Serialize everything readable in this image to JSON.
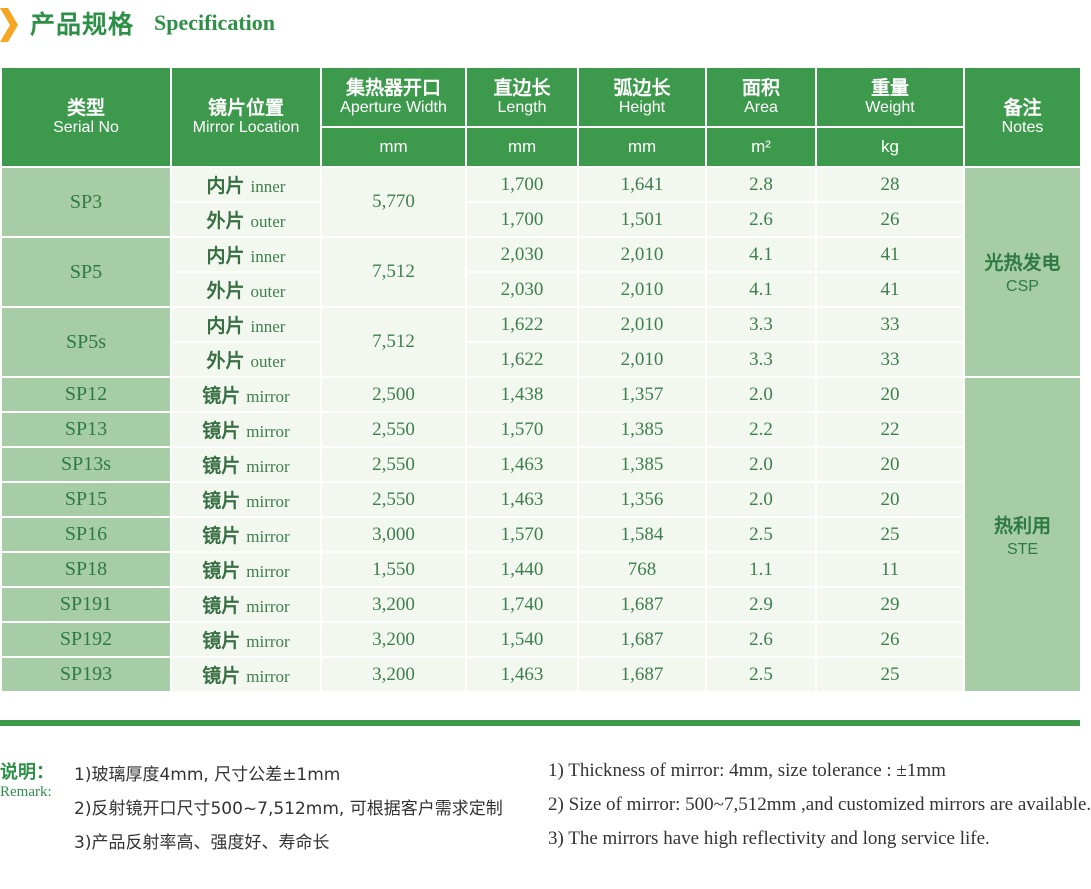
{
  "header": {
    "title_zh": "产品规格",
    "title_en": "Specification",
    "accent_color": "#3d9a4c",
    "arrow_icon": "chevron-right-icon"
  },
  "table": {
    "headers": {
      "serial": {
        "zh": "类型",
        "en": "Serial No"
      },
      "location": {
        "zh": "镜片位置",
        "en": "Mirror Location"
      },
      "aperture": {
        "zh": "集热器开口",
        "en": "Aperture Width",
        "unit": "mm"
      },
      "length": {
        "zh": "直边长",
        "en": "Length",
        "unit": "mm"
      },
      "height": {
        "zh": "弧边长",
        "en": "Height",
        "unit": "mm"
      },
      "area": {
        "zh": "面积",
        "en": "Area",
        "unit": "m²"
      },
      "weight": {
        "zh": "重量",
        "en": "Weight",
        "unit": "kg"
      },
      "notes": {
        "zh": "备注",
        "en": "Notes"
      }
    },
    "groups": [
      {
        "serial": "SP3",
        "aperture": "5,770",
        "rows": [
          {
            "loc_zh": "内片",
            "loc_en": "inner",
            "length": "1,700",
            "height": "1,641",
            "area": "2.8",
            "weight": "28"
          },
          {
            "loc_zh": "外片",
            "loc_en": "outer",
            "length": "1,700",
            "height": "1,501",
            "area": "2.6",
            "weight": "26"
          }
        ]
      },
      {
        "serial": "SP5",
        "aperture": "7,512",
        "rows": [
          {
            "loc_zh": "内片",
            "loc_en": "inner",
            "length": "2,030",
            "height": "2,010",
            "area": "4.1",
            "weight": "41"
          },
          {
            "loc_zh": "外片",
            "loc_en": "outer",
            "length": "2,030",
            "height": "2,010",
            "area": "4.1",
            "weight": "41"
          }
        ]
      },
      {
        "serial": "SP5s",
        "aperture": "7,512",
        "rows": [
          {
            "loc_zh": "内片",
            "loc_en": "inner",
            "length": "1,622",
            "height": "2,010",
            "area": "3.3",
            "weight": "33"
          },
          {
            "loc_zh": "外片",
            "loc_en": "outer",
            "length": "1,622",
            "height": "2,010",
            "area": "3.3",
            "weight": "33"
          }
        ]
      },
      {
        "serial": "SP12",
        "aperture": "2,500",
        "rows": [
          {
            "loc_zh": "镜片",
            "loc_en": "mirror",
            "length": "1,438",
            "height": "1,357",
            "area": "2.0",
            "weight": "20"
          }
        ]
      },
      {
        "serial": "SP13",
        "aperture": "2,550",
        "rows": [
          {
            "loc_zh": "镜片",
            "loc_en": "mirror",
            "length": "1,570",
            "height": "1,385",
            "area": "2.2",
            "weight": "22"
          }
        ]
      },
      {
        "serial": "SP13s",
        "aperture": "2,550",
        "rows": [
          {
            "loc_zh": "镜片",
            "loc_en": "mirror",
            "length": "1,463",
            "height": "1,385",
            "area": "2.0",
            "weight": "20"
          }
        ]
      },
      {
        "serial": "SP15",
        "aperture": "2,550",
        "rows": [
          {
            "loc_zh": "镜片",
            "loc_en": "mirror",
            "length": "1,463",
            "height": "1,356",
            "area": "2.0",
            "weight": "20"
          }
        ]
      },
      {
        "serial": "SP16",
        "aperture": "3,000",
        "rows": [
          {
            "loc_zh": "镜片",
            "loc_en": "mirror",
            "length": "1,570",
            "height": "1,584",
            "area": "2.5",
            "weight": "25"
          }
        ]
      },
      {
        "serial": "SP18",
        "aperture": "1,550",
        "rows": [
          {
            "loc_zh": "镜片",
            "loc_en": "mirror",
            "length": "1,440",
            "height": "768",
            "area": "1.1",
            "weight": "11"
          }
        ]
      },
      {
        "serial": "SP191",
        "aperture": "3,200",
        "rows": [
          {
            "loc_zh": "镜片",
            "loc_en": "mirror",
            "length": "1,740",
            "height": "1,687",
            "area": "2.9",
            "weight": "29"
          }
        ]
      },
      {
        "serial": "SP192",
        "aperture": "3,200",
        "rows": [
          {
            "loc_zh": "镜片",
            "loc_en": "mirror",
            "length": "1,540",
            "height": "1,687",
            "area": "2.6",
            "weight": "26"
          }
        ]
      },
      {
        "serial": "SP193",
        "aperture": "3,200",
        "rows": [
          {
            "loc_zh": "镜片",
            "loc_en": "mirror",
            "length": "1,463",
            "height": "1,687",
            "area": "2.5",
            "weight": "25"
          }
        ]
      }
    ],
    "notes": [
      {
        "zh": "光热发电",
        "en": "CSP"
      },
      {
        "zh": "热利用",
        "en": "STE"
      }
    ]
  },
  "remarks": {
    "label_zh": "说明：",
    "label_en": "Remark:",
    "zh": [
      "1)玻璃厚度4mm, 尺寸公差±1mm",
      "2)反射镜开口尺寸500~7,512mm, 可根据客户需求定制",
      "3)产品反射率高、强度好、寿命长"
    ],
    "en": [
      "1) Thickness of mirror: 4mm, size tolerance : ±1mm",
      "2) Size of mirror: 500~7,512mm ,and customized mirrors are available.",
      "3) The mirrors have high reflectivity and long service life."
    ]
  }
}
